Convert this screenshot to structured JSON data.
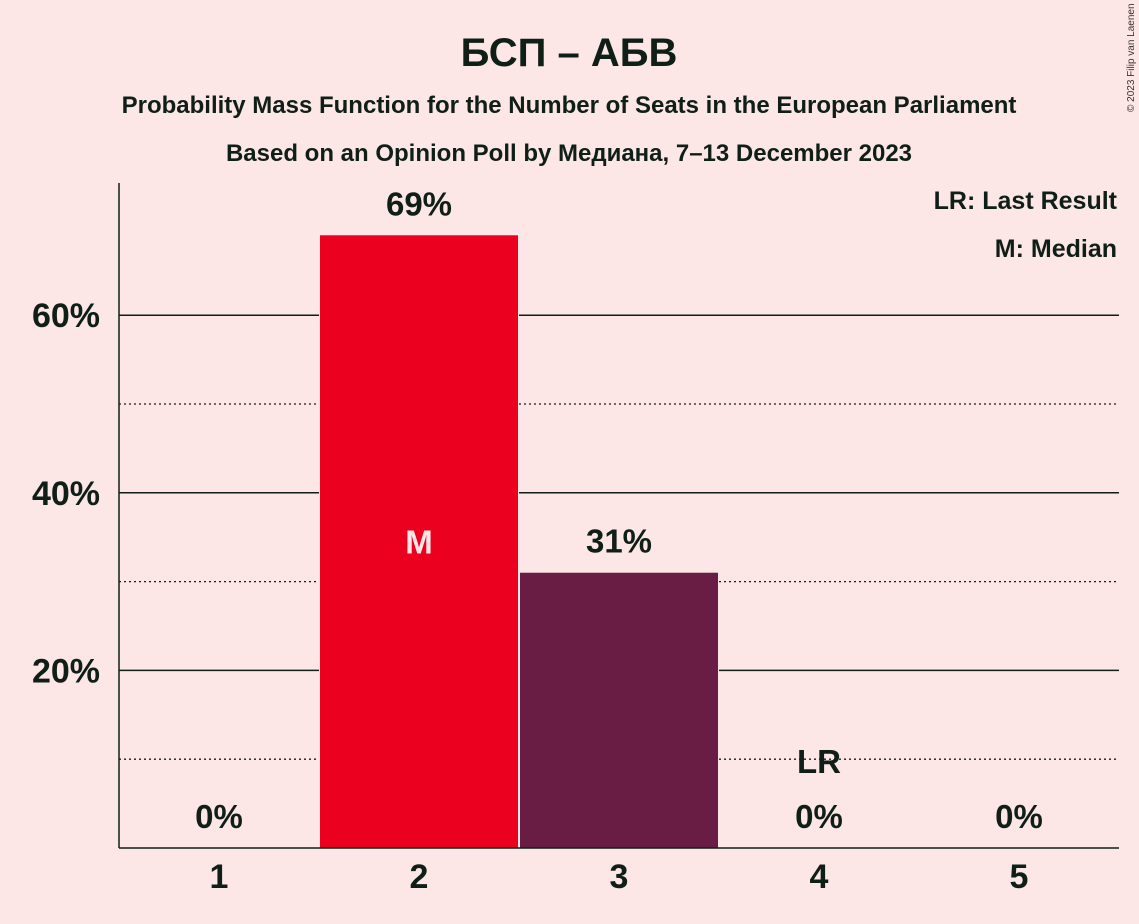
{
  "header": {
    "title": "БСП – АБВ",
    "subtitle1": "Probability Mass Function for the Number of Seats in the European Parliament",
    "subtitle2": "Based on an Opinion Poll by Медиана, 7–13 December 2023"
  },
  "legend": {
    "last_result": "LR: Last Result",
    "median": "M: Median"
  },
  "credit": "© 2023 Filip van Laenen",
  "chart_data": {
    "type": "bar",
    "categories": [
      "1",
      "2",
      "3",
      "4",
      "5"
    ],
    "values": [
      0,
      69,
      31,
      0,
      0
    ],
    "value_labels": [
      "0%",
      "69%",
      "31%",
      "0%",
      "0%"
    ],
    "ylim": [
      0,
      75
    ],
    "yticks": [
      20,
      40,
      60
    ],
    "ytick_labels": [
      "20%",
      "40%",
      "60%"
    ],
    "minor_gridlines": [
      10,
      30,
      50
    ],
    "bar_colors": [
      "#ec0020",
      "#ec0020",
      "#6a1d44",
      "#6a1d44",
      "#6a1d44"
    ],
    "median_category": "2",
    "median_label": "M",
    "last_result_category": "4",
    "last_result_label": "LR",
    "grid": true,
    "legend_position": "top-right"
  },
  "colors": {
    "background": "#fde6e6",
    "median_bar": "#ec0020",
    "other_bar": "#6a1d44",
    "text": "#0f1f18"
  }
}
